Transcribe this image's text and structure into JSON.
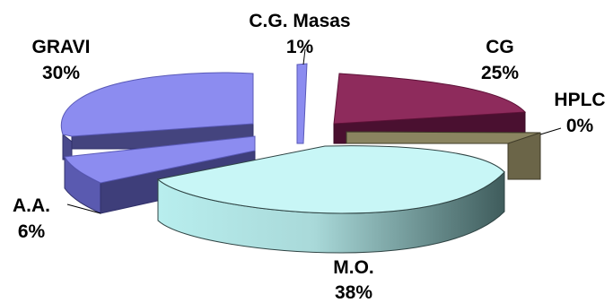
{
  "chart_data": {
    "type": "pie",
    "style": "3d-exploded",
    "slices": [
      {
        "label": "C.G. Masas",
        "value": 1,
        "display": "1%",
        "color": "#8c8cf0"
      },
      {
        "label": "CG",
        "value": 25,
        "display": "25%",
        "color": "#8e2b5c"
      },
      {
        "label": "HPLC",
        "value": 0,
        "display": "0%",
        "color": "#6b6548"
      },
      {
        "label": "M.O.",
        "value": 38,
        "display": "38%",
        "color": "#c8f6f6"
      },
      {
        "label": "A.A.",
        "value": 6,
        "display": "6%",
        "color": "#8c8cf0"
      },
      {
        "label": "GRAVI",
        "value": 30,
        "display": "30%",
        "color": "#8c8cf0"
      }
    ],
    "legend": "none"
  }
}
